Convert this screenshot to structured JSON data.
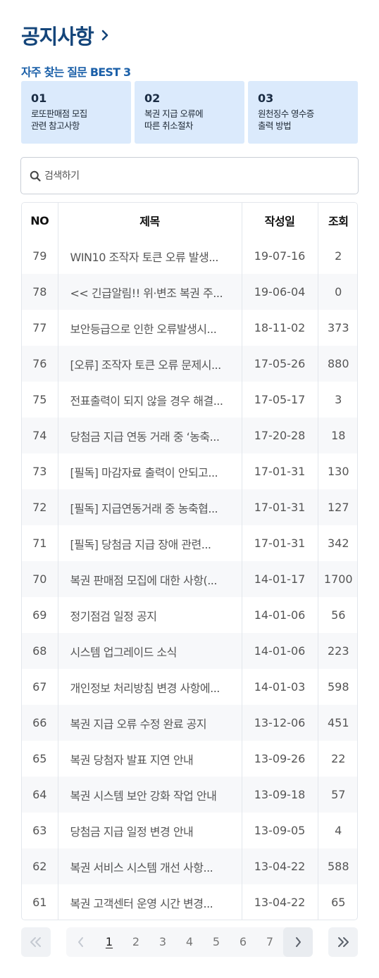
{
  "page": {
    "title": "공지사항"
  },
  "faq": {
    "heading": "자주 찾는 질문 BEST 3",
    "items": [
      {
        "num": "01",
        "text": "로또판매점 모집\n관련 참고사항"
      },
      {
        "num": "02",
        "text": "복권 지급 오류에\n따른 취소절차"
      },
      {
        "num": "03",
        "text": "원천징수 영수증\n출력 방법"
      }
    ]
  },
  "search": {
    "placeholder": "검색하기",
    "value": ""
  },
  "table": {
    "headers": {
      "no": "NO",
      "title": "제목",
      "date": "작성일",
      "views": "조회"
    },
    "rows": [
      {
        "no": "79",
        "title": "WIN10 조작자 토큰 오류 발생...",
        "date": "19-07-16",
        "views": "2"
      },
      {
        "no": "78",
        "title": "<< 긴급알림!! 위·변조 복권 주...",
        "date": "19-06-04",
        "views": "0"
      },
      {
        "no": "77",
        "title": "보안등급으로 인한 오류발생시...",
        "date": "18-11-02",
        "views": "373"
      },
      {
        "no": "76",
        "title": "[오류] 조작자 토큰 오류 문제시...",
        "date": "17-05-26",
        "views": "880"
      },
      {
        "no": "75",
        "title": "전표출력이 되지 않을 경우 해결...",
        "date": "17-05-17",
        "views": "3"
      },
      {
        "no": "74",
        "title": "당첨금 지급 연동 거래 중 ‘농축...",
        "date": "17-20-28",
        "views": "18"
      },
      {
        "no": "73",
        "title": "[필독] 마감자료 출력이 안되고...",
        "date": "17-01-31",
        "views": "130"
      },
      {
        "no": "72",
        "title": "[필독] 지급연동거래 중 농축협...",
        "date": "17-01-31",
        "views": "127"
      },
      {
        "no": "71",
        "title": "[필독] 당첨금 지급 장애 관련...",
        "date": "17-01-31",
        "views": "342"
      },
      {
        "no": "70",
        "title": "복권 판매점 모집에 대한 사항(...",
        "date": "14-01-17",
        "views": "1700"
      },
      {
        "no": "69",
        "title": "정기점검 일정 공지",
        "date": "14-01-06",
        "views": "56"
      },
      {
        "no": "68",
        "title": "시스템 업그레이드 소식",
        "date": "14-01-06",
        "views": "223"
      },
      {
        "no": "67",
        "title": "개인정보 처리방침 변경 사항에...",
        "date": "14-01-03",
        "views": "598"
      },
      {
        "no": "66",
        "title": "복권 지급 오류 수정 완료 공지",
        "date": "13-12-06",
        "views": "451"
      },
      {
        "no": "65",
        "title": "복권 당첨자 발표 지연 안내",
        "date": "13-09-26",
        "views": "22"
      },
      {
        "no": "64",
        "title": "복권 시스템 보안 강화 작업 안내",
        "date": "13-09-18",
        "views": "57"
      },
      {
        "no": "63",
        "title": "당첨금 지급 일정 변경 안내",
        "date": "13-09-05",
        "views": "4"
      },
      {
        "no": "62",
        "title": "복권 서비스 시스템 개선 사항...",
        "date": "13-04-22",
        "views": "588"
      },
      {
        "no": "61",
        "title": "복권 고객센터 운영 시간 변경...",
        "date": "13-04-22",
        "views": "65"
      }
    ]
  },
  "pagination": {
    "pages": [
      "1",
      "2",
      "3",
      "4",
      "5",
      "6",
      "7"
    ],
    "current": "1"
  },
  "colors": {
    "title": "#14457a",
    "faq_heading": "#1a5fa8",
    "faq_card_bg": "#dbeafc"
  }
}
